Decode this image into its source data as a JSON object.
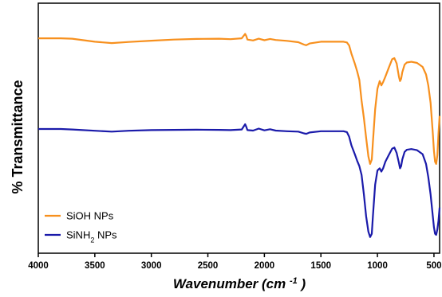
{
  "chart_data": {
    "type": "line",
    "xlabel": "Wavenumber (cm",
    "xlabel_superscript": "-1",
    "xlabel_close": ")",
    "ylabel": "% Transmittance",
    "xlim": [
      4000,
      450
    ],
    "x_reversed": true,
    "xticks": [
      4000,
      3500,
      3000,
      2500,
      2000,
      1500,
      1000,
      500
    ],
    "y_ticks_shown": false,
    "grid": false,
    "legend_position": "bottom-left",
    "series": [
      {
        "name": "SiOH NPs",
        "name_parts": [
          "SiOH NPs"
        ],
        "color": "#F7901E",
        "x": [
          4000,
          3800,
          3700,
          3500,
          3350,
          3200,
          3000,
          2800,
          2600,
          2400,
          2300,
          2200,
          2170,
          2160,
          2150,
          2100,
          2050,
          2000,
          1950,
          1900,
          1800,
          1700,
          1650,
          1630,
          1600,
          1500,
          1400,
          1300,
          1270,
          1250,
          1230,
          1200,
          1180,
          1160,
          1140,
          1120,
          1100,
          1080,
          1065,
          1050,
          1040,
          1020,
          1000,
          980,
          965,
          950,
          930,
          900,
          870,
          850,
          830,
          810,
          800,
          790,
          780,
          760,
          740,
          700,
          650,
          600,
          570,
          550,
          530,
          510,
          500,
          490,
          480,
          470,
          460,
          450
        ],
        "y": [
          95.6,
          95.6,
          95.4,
          94.0,
          93.4,
          93.9,
          94.5,
          95.0,
          95.3,
          95.4,
          95.2,
          95.6,
          97.6,
          96.6,
          95.0,
          94.6,
          95.4,
          94.7,
          95.3,
          94.8,
          94.4,
          93.8,
          92.7,
          92.4,
          93.2,
          94.0,
          94.0,
          94.0,
          93.7,
          92.3,
          88.5,
          84.0,
          80.5,
          76.5,
          67.0,
          59.0,
          50.0,
          41.5,
          38.0,
          40.0,
          48.0,
          63.0,
          72.5,
          76.0,
          74.0,
          75.5,
          78.0,
          82.0,
          86.0,
          86.5,
          84.0,
          78.0,
          76.0,
          77.0,
          80.0,
          83.5,
          84.5,
          84.8,
          84.3,
          82.5,
          79.0,
          74.0,
          66.0,
          52.0,
          44.0,
          39.0,
          38.0,
          42.0,
          52.0,
          60.0
        ]
      },
      {
        "name": "SiNH2 NPs",
        "name_parts": [
          "SiNH",
          "2",
          " NPs"
        ],
        "color": "#1A1AAA",
        "x": [
          4000,
          3800,
          3700,
          3500,
          3350,
          3200,
          3000,
          2800,
          2600,
          2400,
          2300,
          2200,
          2170,
          2160,
          2150,
          2100,
          2050,
          2000,
          1950,
          1900,
          1800,
          1700,
          1650,
          1630,
          1600,
          1500,
          1400,
          1300,
          1270,
          1250,
          1230,
          1200,
          1180,
          1160,
          1140,
          1120,
          1100,
          1080,
          1065,
          1050,
          1040,
          1020,
          1000,
          980,
          965,
          950,
          930,
          900,
          870,
          850,
          830,
          810,
          800,
          790,
          780,
          760,
          740,
          700,
          650,
          600,
          570,
          550,
          530,
          510,
          500,
          490,
          480,
          470,
          460,
          450
        ],
        "y": [
          54.0,
          54.0,
          53.8,
          53.2,
          52.8,
          53.2,
          53.5,
          53.6,
          53.7,
          53.6,
          53.5,
          53.8,
          56.2,
          55.0,
          53.5,
          53.3,
          54.2,
          53.4,
          53.9,
          53.3,
          53.0,
          52.8,
          52.0,
          51.8,
          52.4,
          53.0,
          53.0,
          53.0,
          52.6,
          50.5,
          46.5,
          42.5,
          39.5,
          37.0,
          33.0,
          24.0,
          14.0,
          7.0,
          4.5,
          6.0,
          14.0,
          28.5,
          35.0,
          36.0,
          34.5,
          36.0,
          39.0,
          42.0,
          45.0,
          45.5,
          43.0,
          38.5,
          36.0,
          37.0,
          40.0,
          43.5,
          44.5,
          44.8,
          44.3,
          42.5,
          38.0,
          32.0,
          24.0,
          14.0,
          9.0,
          6.0,
          5.5,
          8.0,
          12.0,
          18.0
        ]
      }
    ]
  }
}
